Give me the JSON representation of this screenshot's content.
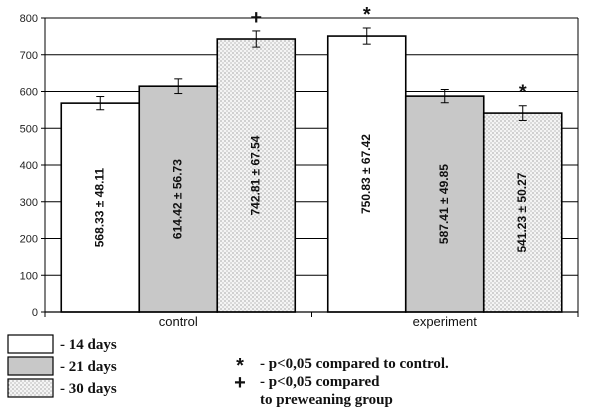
{
  "chart_data": {
    "type": "bar",
    "categories": [
      "control",
      "experiment"
    ],
    "series": [
      {
        "name": "- 14 days",
        "values": [
          568.33,
          750.83
        ],
        "errors": [
          18,
          22
        ],
        "labels": [
          "568.33 ± 48.11",
          "750.83 ± 67.42"
        ],
        "fill": "#ffffff"
      },
      {
        "name": "- 21 days",
        "values": [
          614.42,
          587.41
        ],
        "errors": [
          20,
          18
        ],
        "labels": [
          "614.42 ± 56.73",
          "587.41 ± 49.85"
        ],
        "fill": "#c8c8c8"
      },
      {
        "name": "- 30 days",
        "values": [
          742.81,
          541.23
        ],
        "errors": [
          22,
          20
        ],
        "labels": [
          "742.81 ± 67.54",
          "541.23 ± 50.27"
        ],
        "fill": "dots"
      }
    ],
    "markers": [
      {
        "category": 0,
        "series": 2,
        "symbol": "+"
      },
      {
        "category": 1,
        "series": 0,
        "symbol": "*"
      },
      {
        "category": 1,
        "series": 2,
        "symbol": "*"
      }
    ],
    "yticks": [
      0,
      100,
      200,
      300,
      400,
      500,
      600,
      700,
      800
    ],
    "ylim": [
      0,
      800
    ],
    "grid": true,
    "xlabel": "",
    "ylabel": "",
    "title": ""
  },
  "notes": [
    {
      "symbol": "*",
      "text": "- p<0,05 compared to control."
    },
    {
      "symbol": "+",
      "text": "- p<0,05 compared",
      "text2": "to preweaning group"
    }
  ]
}
